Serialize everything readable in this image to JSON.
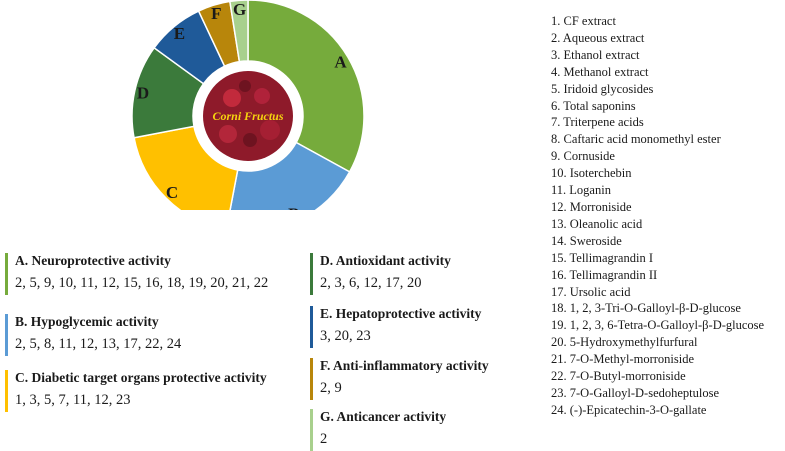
{
  "center_label": "Corni Fructus",
  "segments": [
    {
      "letter": "A",
      "color": "#76ab3c",
      "value": 33
    },
    {
      "letter": "B",
      "color": "#5b9bd5",
      "value": 20
    },
    {
      "letter": "C",
      "color": "#ffc000",
      "value": 19
    },
    {
      "letter": "D",
      "color": "#3b7a3b",
      "value": 13
    },
    {
      "letter": "E",
      "color": "#1f5a99",
      "value": 8
    },
    {
      "letter": "F",
      "color": "#b8860b",
      "value": 4.5
    },
    {
      "letter": "G",
      "color": "#a8d08d",
      "value": 2.5
    }
  ],
  "activities": [
    {
      "title": "A. Neuroprotective activity",
      "compounds": "2, 5, 9, 10, 11, 12, 15, 16, 18, 19, 20, 21, 22",
      "color": "#76ab3c"
    },
    {
      "title": "B. Hypoglycemic activity",
      "compounds": "2, 5, 8, 11, 12, 13, 17, 22, 24",
      "color": "#5b9bd5"
    },
    {
      "title": "C. Diabetic target organs protective activity",
      "compounds": "1, 3, 5, 7, 11, 12, 23",
      "color": "#ffc000"
    },
    {
      "title": "D. Antioxidant activity",
      "compounds": "2, 3, 6, 12, 17, 20",
      "color": "#3b7a3b"
    },
    {
      "title": "E. Hepatoprotective activity",
      "compounds": "3, 20, 23",
      "color": "#1f5a99"
    },
    {
      "title": "F. Anti-inflammatory activity",
      "compounds": "2, 9",
      "color": "#b8860b"
    },
    {
      "title": "G. Anticancer activity",
      "compounds": "2",
      "color": "#a8d08d"
    }
  ],
  "compounds": [
    {
      "num": "1.",
      "name": "CF extract"
    },
    {
      "num": "2.",
      "name": "Aqueous extract"
    },
    {
      "num": "3.",
      "name": "Ethanol extract"
    },
    {
      "num": "4.",
      "name": "Methanol extract"
    },
    {
      "num": "5.",
      "name": "Iridoid glycosides"
    },
    {
      "num": "6.",
      "name": "Total saponins"
    },
    {
      "num": "7.",
      "name": "Triterpene acids"
    },
    {
      "num": "8.",
      "name": "Caftaric acid monomethyl ester"
    },
    {
      "num": "9.",
      "name": "Cornuside"
    },
    {
      "num": "10.",
      "name": "Isoterchebin"
    },
    {
      "num": "11.",
      "name": "Loganin"
    },
    {
      "num": "12.",
      "name": "Morroniside"
    },
    {
      "num": "13.",
      "name": "Oleanolic acid"
    },
    {
      "num": "14.",
      "name": "Sweroside"
    },
    {
      "num": "15.",
      "name": "Tellimagrandin I"
    },
    {
      "num": "16.",
      "name": "Tellimagrandin II"
    },
    {
      "num": "17.",
      "name": "Ursolic acid"
    },
    {
      "num": "18.",
      "name": "1, 2, 3-Tri-O-Galloyl-β-D-glucose"
    },
    {
      "num": "19.",
      "name": "1, 2, 3, 6-Tetra-O-Galloyl-β-D-glucose"
    },
    {
      "num": "20.",
      "name": "5-Hydroxymethylfurfural"
    },
    {
      "num": "21.",
      "name": "7-O-Methyl-morroniside"
    },
    {
      "num": "22.",
      "name": "7-O-Butyl-morroniside"
    },
    {
      "num": "23.",
      "name": "7-O-Galloyl-D-sedoheptulose"
    },
    {
      "num": "24.",
      "name": "(-)-Epicatechin-3-O-gallate"
    }
  ]
}
